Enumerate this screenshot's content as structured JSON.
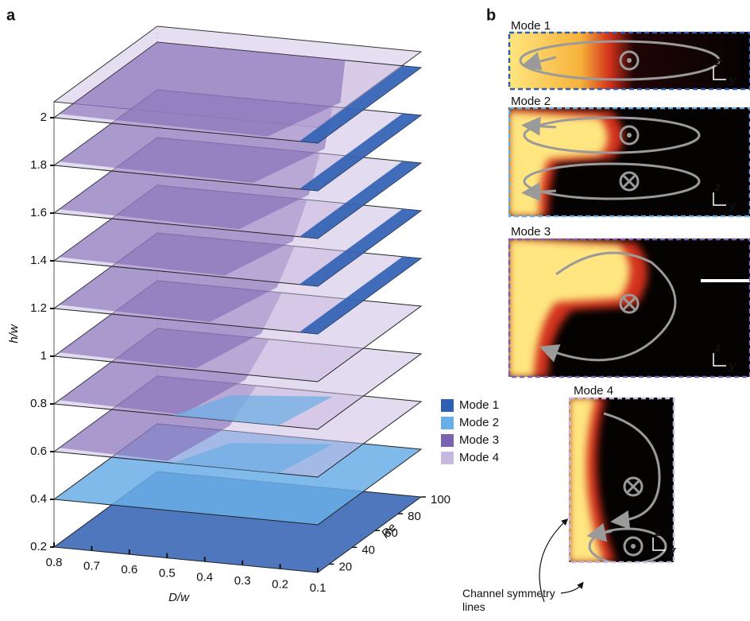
{
  "panel_a": {
    "label": "a",
    "y_axis": {
      "label": "h/w",
      "lim": [
        0.2,
        2
      ],
      "ticks": [
        0.2,
        0.4,
        0.6,
        0.8,
        1,
        1.2,
        1.4,
        1.6,
        1.8,
        2
      ]
    },
    "x_axis": {
      "label": "D/w",
      "lim": [
        0.8,
        0.1
      ],
      "ticks": [
        0.8,
        0.7,
        0.6,
        0.5,
        0.4,
        0.3,
        0.2,
        0.1
      ]
    },
    "depth_axis": {
      "label": "Re",
      "lim": [
        10,
        100
      ],
      "ticks": [
        20,
        40,
        60,
        80,
        100
      ]
    },
    "legend": [
      {
        "name": "Mode 1",
        "color": "#2f5fb3"
      },
      {
        "name": "Mode 2",
        "color": "#6aaee6"
      },
      {
        "name": "Mode 3",
        "color": "#7b62b0"
      },
      {
        "name": "Mode 4",
        "color": "#c7b8e0"
      }
    ]
  },
  "panel_b": {
    "label": "b",
    "modes": [
      {
        "title": "Mode 1"
      },
      {
        "title": "Mode 2"
      },
      {
        "title": "Mode 3"
      },
      {
        "title": "Mode 4"
      }
    ],
    "axis_labels": {
      "z": "z",
      "y": "y"
    },
    "annotation": "Channel symmetry lines"
  }
}
